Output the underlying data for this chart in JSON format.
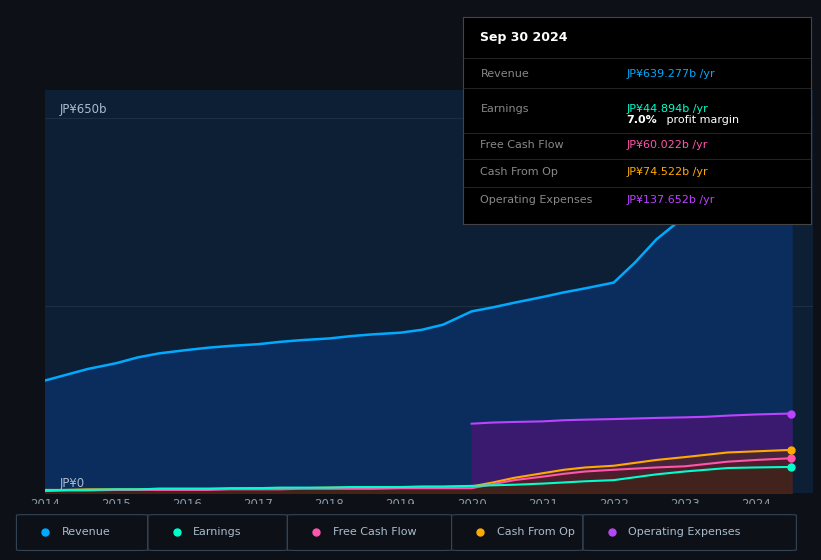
{
  "bg_color": "#0d1117",
  "plot_bg_color": "#0d1f35",
  "title_label": "JP¥650b",
  "zero_label": "JP¥0",
  "xlabel_color": "#8899aa",
  "ylabel_color": "#aabbcc",
  "x_ticks": [
    2014,
    2015,
    2016,
    2017,
    2018,
    2019,
    2020,
    2021,
    2022,
    2023,
    2024
  ],
  "ylim": [
    0,
    700
  ],
  "revenue_color": "#00aaff",
  "earnings_color": "#00ffcc",
  "fcf_color": "#ff55aa",
  "cashfromop_color": "#ffaa00",
  "opex_color": "#bb44ff",
  "tooltip_title": "Sep 30 2024",
  "tooltip_rows": [
    {
      "label": "Revenue",
      "value": "JP¥639.277b /yr",
      "color": "#00aaff"
    },
    {
      "label": "Earnings",
      "value": "JP¥44.894b /yr",
      "color": "#00ffcc"
    },
    {
      "label": "",
      "value": "7.0% profit margin",
      "color": "#ffffff"
    },
    {
      "label": "Free Cash Flow",
      "value": "JP¥60.022b /yr",
      "color": "#ff55aa"
    },
    {
      "label": "Cash From Op",
      "value": "JP¥74.522b /yr",
      "color": "#ffaa00"
    },
    {
      "label": "Operating Expenses",
      "value": "JP¥137.652b /yr",
      "color": "#bb44ff"
    }
  ],
  "legend_items": [
    {
      "label": "Revenue",
      "color": "#00aaff"
    },
    {
      "label": "Earnings",
      "color": "#00ffcc"
    },
    {
      "label": "Free Cash Flow",
      "color": "#ff55aa"
    },
    {
      "label": "Cash From Op",
      "color": "#ffaa00"
    },
    {
      "label": "Operating Expenses",
      "color": "#bb44ff"
    }
  ]
}
